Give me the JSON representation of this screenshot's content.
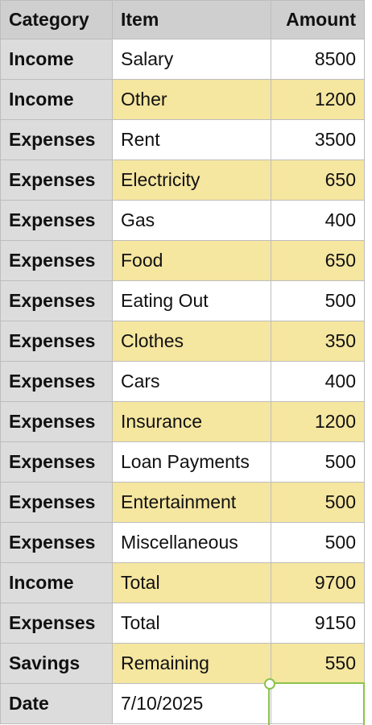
{
  "header": {
    "category": "Category",
    "item": "Item",
    "amount": "Amount"
  },
  "rows": [
    {
      "category": "Income",
      "item": "Salary",
      "amount": "8500"
    },
    {
      "category": "Income",
      "item": "Other",
      "amount": "1200"
    },
    {
      "category": "Expenses",
      "item": "Rent",
      "amount": "3500"
    },
    {
      "category": "Expenses",
      "item": "Electricity",
      "amount": "650"
    },
    {
      "category": "Expenses",
      "item": "Gas",
      "amount": "400"
    },
    {
      "category": "Expenses",
      "item": "Food",
      "amount": "650"
    },
    {
      "category": "Expenses",
      "item": "Eating Out",
      "amount": "500"
    },
    {
      "category": "Expenses",
      "item": "Clothes",
      "amount": "350"
    },
    {
      "category": "Expenses",
      "item": "Cars",
      "amount": "400"
    },
    {
      "category": "Expenses",
      "item": "Insurance",
      "amount": "1200"
    },
    {
      "category": "Expenses",
      "item": "Loan Payments",
      "amount": "500"
    },
    {
      "category": "Expenses",
      "item": "Entertainment",
      "amount": "500"
    },
    {
      "category": "Expenses",
      "item": "Miscellaneous",
      "amount": "500"
    },
    {
      "category": "Income",
      "item": "Total",
      "amount": "9700"
    },
    {
      "category": "Expenses",
      "item": "Total",
      "amount": "9150"
    },
    {
      "category": "Savings",
      "item": "Remaining",
      "amount": "550"
    },
    {
      "category": "Date",
      "item": "7/10/2025",
      "amount": ""
    }
  ],
  "colors": {
    "header_bg": "#cfcfcf",
    "category_bg": "#dcdcdc",
    "stripe_bg": "#f5e6a0",
    "selection": "#8bc34a"
  }
}
